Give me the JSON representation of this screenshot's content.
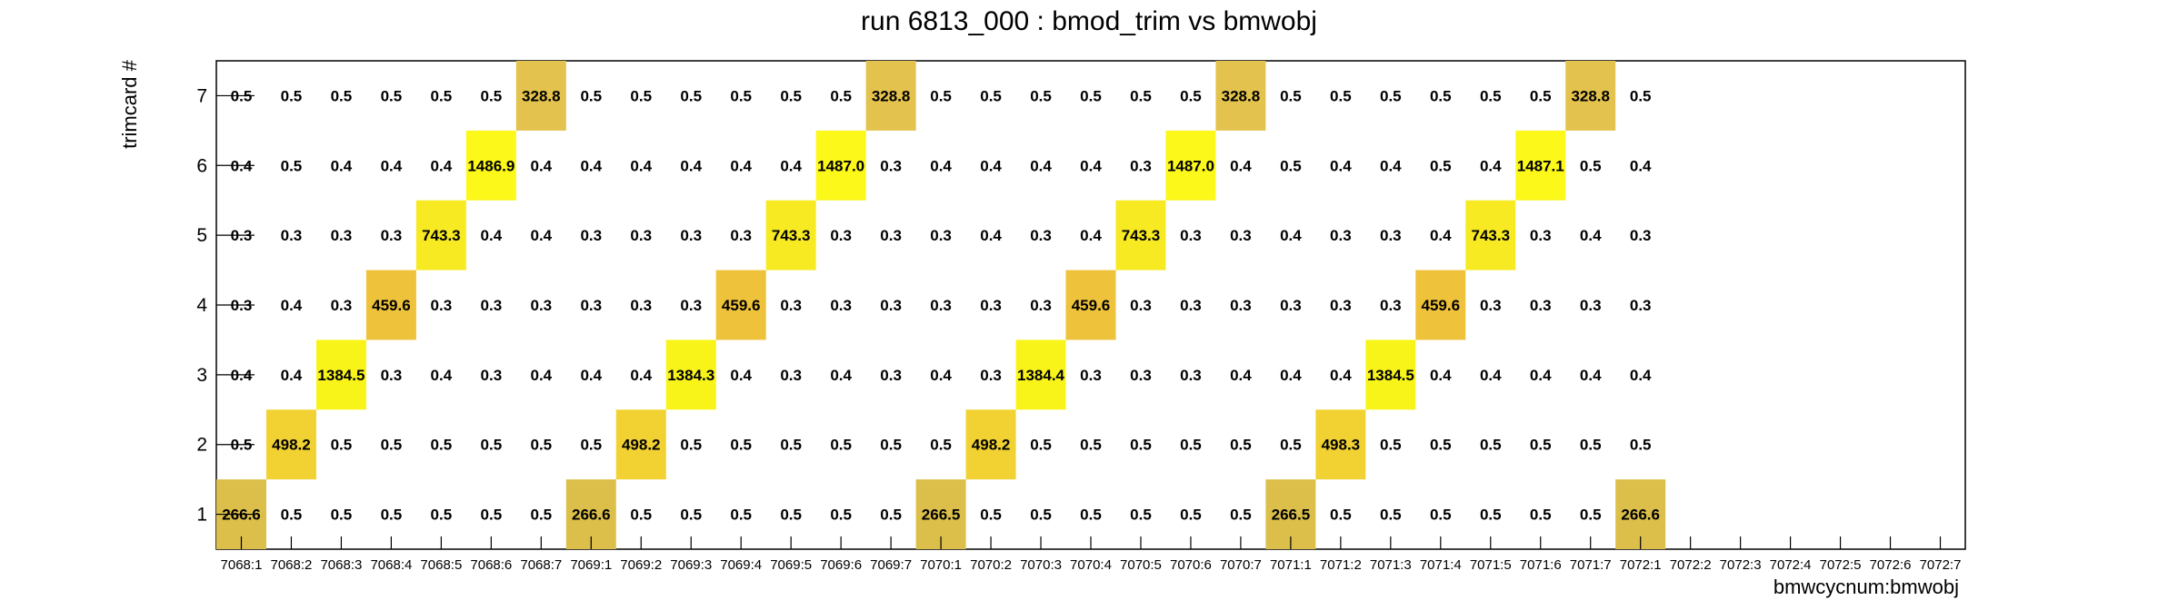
{
  "chart_data": {
    "type": "heatmap",
    "title": "run 6813_000 : bmod_trim vs bmwobj",
    "xlabel": "bmwcycnum:bmwobj",
    "ylabel": "trimcard #",
    "x_categories": [
      "7068:1",
      "7068:2",
      "7068:3",
      "7068:4",
      "7068:5",
      "7068:6",
      "7068:7",
      "7069:1",
      "7069:2",
      "7069:3",
      "7069:4",
      "7069:5",
      "7069:6",
      "7069:7",
      "7070:1",
      "7070:2",
      "7070:3",
      "7070:4",
      "7070:5",
      "7070:6",
      "7070:7",
      "7071:1",
      "7071:2",
      "7071:3",
      "7071:4",
      "7071:5",
      "7071:6",
      "7071:7",
      "7072:1",
      "7072:2",
      "7072:3",
      "7072:4",
      "7072:5",
      "7072:6",
      "7072:7"
    ],
    "y_categories": [
      "1",
      "2",
      "3",
      "4",
      "5",
      "6",
      "7"
    ],
    "values": [
      [
        "266.6",
        "0.5",
        "0.5",
        "0.5",
        "0.5",
        "0.5",
        "0.5",
        "266.6",
        "0.5",
        "0.5",
        "0.5",
        "0.5",
        "0.5",
        "0.5",
        "266.5",
        "0.5",
        "0.5",
        "0.5",
        "0.5",
        "0.5",
        "0.5",
        "266.5",
        "0.5",
        "0.5",
        "0.5",
        "0.5",
        "0.5",
        "0.5",
        "266.6",
        null,
        null,
        null,
        null,
        null,
        null
      ],
      [
        "0.5",
        "498.2",
        "0.5",
        "0.5",
        "0.5",
        "0.5",
        "0.5",
        "0.5",
        "498.2",
        "0.5",
        "0.5",
        "0.5",
        "0.5",
        "0.5",
        "0.5",
        "498.2",
        "0.5",
        "0.5",
        "0.5",
        "0.5",
        "0.5",
        "0.5",
        "498.3",
        "0.5",
        "0.5",
        "0.5",
        "0.5",
        "0.5",
        "0.5",
        null,
        null,
        null,
        null,
        null,
        null
      ],
      [
        "0.4",
        "0.4",
        "1384.5",
        "0.3",
        "0.4",
        "0.3",
        "0.4",
        "0.4",
        "0.4",
        "1384.3",
        "0.4",
        "0.3",
        "0.4",
        "0.3",
        "0.4",
        "0.3",
        "1384.4",
        "0.3",
        "0.3",
        "0.3",
        "0.4",
        "0.4",
        "0.4",
        "1384.5",
        "0.4",
        "0.4",
        "0.4",
        "0.4",
        "0.4",
        null,
        null,
        null,
        null,
        null,
        null
      ],
      [
        "0.3",
        "0.4",
        "0.3",
        "459.6",
        "0.3",
        "0.3",
        "0.3",
        "0.3",
        "0.3",
        "0.3",
        "459.6",
        "0.3",
        "0.3",
        "0.3",
        "0.3",
        "0.3",
        "0.3",
        "459.6",
        "0.3",
        "0.3",
        "0.3",
        "0.3",
        "0.3",
        "0.3",
        "459.6",
        "0.3",
        "0.3",
        "0.3",
        "0.3",
        null,
        null,
        null,
        null,
        null,
        null
      ],
      [
        "0.3",
        "0.3",
        "0.3",
        "0.3",
        "743.3",
        "0.4",
        "0.4",
        "0.3",
        "0.3",
        "0.3",
        "0.3",
        "743.3",
        "0.3",
        "0.3",
        "0.3",
        "0.4",
        "0.3",
        "0.4",
        "743.3",
        "0.3",
        "0.3",
        "0.4",
        "0.3",
        "0.3",
        "0.4",
        "743.3",
        "0.3",
        "0.4",
        "0.3",
        null,
        null,
        null,
        null,
        null,
        null
      ],
      [
        "0.4",
        "0.5",
        "0.4",
        "0.4",
        "0.4",
        "1486.9",
        "0.4",
        "0.4",
        "0.4",
        "0.4",
        "0.4",
        "0.4",
        "1487.0",
        "0.3",
        "0.4",
        "0.4",
        "0.4",
        "0.4",
        "0.3",
        "1487.0",
        "0.4",
        "0.5",
        "0.4",
        "0.4",
        "0.5",
        "0.4",
        "1487.1",
        "0.5",
        "0.4",
        null,
        null,
        null,
        null,
        null,
        null
      ],
      [
        "0.5",
        "0.5",
        "0.5",
        "0.5",
        "0.5",
        "0.5",
        "328.8",
        "0.5",
        "0.5",
        "0.5",
        "0.5",
        "0.5",
        "0.5",
        "328.8",
        "0.5",
        "0.5",
        "0.5",
        "0.5",
        "0.5",
        "0.5",
        "328.8",
        "0.5",
        "0.5",
        "0.5",
        "0.5",
        "0.5",
        "0.5",
        "328.8",
        "0.5",
        null,
        null,
        null,
        null,
        null,
        null
      ]
    ],
    "colors": {
      "low": "#ffffff",
      "cell_266": "#dcbf4a",
      "cell_498": "#f1d232",
      "cell_1384": "#f8f41a",
      "cell_459": "#eec23a",
      "cell_743": "#f7ea22",
      "cell_1487": "#fbf81a",
      "cell_328": "#e3c24d"
    },
    "grid": false,
    "legend": "none"
  }
}
